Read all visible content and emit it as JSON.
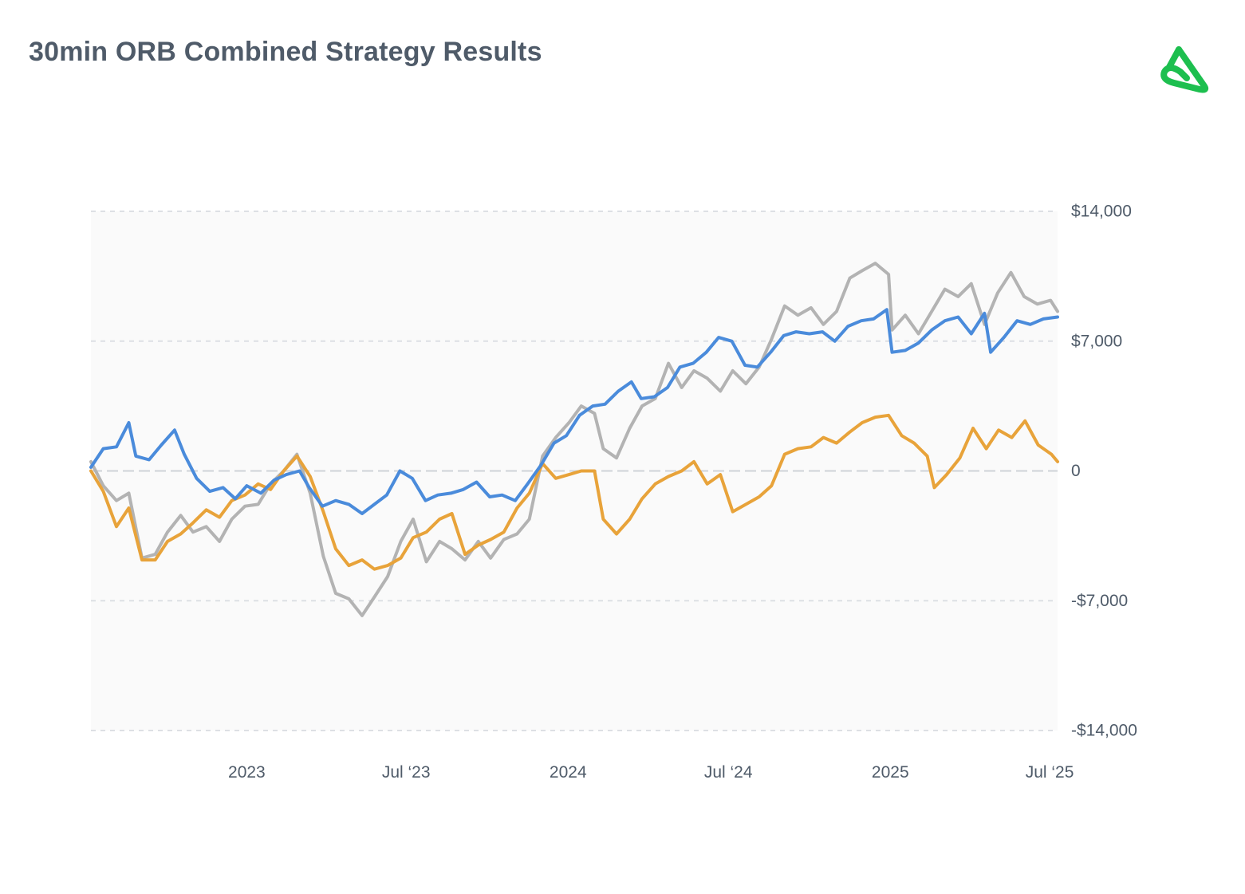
{
  "title": "30min ORB Combined Strategy Results",
  "logo": {
    "icon": "brand-logo-icon",
    "color": "#1dbf4f"
  },
  "chart_data": {
    "type": "line",
    "title": "30min ORB Combined Strategy Results",
    "xlabel": "",
    "ylabel": "",
    "x_tick_labels": [
      "2023",
      "Jul ‘23",
      "2024",
      "Jul ‘24",
      "2025",
      "Jul ‘25"
    ],
    "y_tick_labels": [
      "$14,000",
      "$7,000",
      "0",
      "-$7,000",
      "-$14,000"
    ],
    "y_ticks": [
      14000,
      7000,
      0,
      -7000,
      -14000
    ],
    "ylim": [
      -14000,
      14000
    ],
    "xlim": [
      "2022-07-08",
      "2025-07-10"
    ],
    "x_ticks": [
      "2023-01-01",
      "2023-07-01",
      "2024-01-01",
      "2024-07-01",
      "2025-01-01",
      "2025-07-01"
    ],
    "grid": true,
    "legend": "none",
    "series": [
      {
        "color": "#4a8bdb",
        "points": [
          [
            "2022-07-08",
            200
          ],
          [
            "2022-07-22",
            1200
          ],
          [
            "2022-08-06",
            1300
          ],
          [
            "2022-08-20",
            2600
          ],
          [
            "2022-08-28",
            800
          ],
          [
            "2022-09-12",
            600
          ],
          [
            "2022-09-26",
            1400
          ],
          [
            "2022-10-11",
            2200
          ],
          [
            "2022-10-22",
            900
          ],
          [
            "2022-11-05",
            -400
          ],
          [
            "2022-11-20",
            -1100
          ],
          [
            "2022-12-05",
            -900
          ],
          [
            "2022-12-19",
            -1500
          ],
          [
            "2023-01-01",
            -800
          ],
          [
            "2023-01-17",
            -1200
          ],
          [
            "2023-02-01",
            -500
          ],
          [
            "2023-02-15",
            -200
          ],
          [
            "2023-03-02",
            0
          ],
          [
            "2023-03-13",
            -900
          ],
          [
            "2023-03-28",
            -1900
          ],
          [
            "2023-04-12",
            -1600
          ],
          [
            "2023-04-27",
            -1800
          ],
          [
            "2023-05-12",
            -2300
          ],
          [
            "2023-05-26",
            -1800
          ],
          [
            "2023-06-09",
            -1300
          ],
          [
            "2023-06-24",
            0
          ],
          [
            "2023-07-08",
            -400
          ],
          [
            "2023-07-23",
            -1600
          ],
          [
            "2023-08-06",
            -1300
          ],
          [
            "2023-08-21",
            -1200
          ],
          [
            "2023-09-04",
            -1000
          ],
          [
            "2023-09-19",
            -600
          ],
          [
            "2023-10-04",
            -1400
          ],
          [
            "2023-10-18",
            -1300
          ],
          [
            "2023-11-02",
            -1600
          ],
          [
            "2023-11-16",
            -700
          ],
          [
            "2023-12-01",
            300
          ],
          [
            "2023-12-16",
            1500
          ],
          [
            "2023-12-30",
            1900
          ],
          [
            "2024-01-14",
            3000
          ],
          [
            "2024-01-29",
            3500
          ],
          [
            "2024-02-12",
            3600
          ],
          [
            "2024-02-27",
            4300
          ],
          [
            "2024-03-13",
            4800
          ],
          [
            "2024-03-24",
            3900
          ],
          [
            "2024-04-08",
            4000
          ],
          [
            "2024-04-23",
            4500
          ],
          [
            "2024-05-07",
            5600
          ],
          [
            "2024-05-22",
            5800
          ],
          [
            "2024-06-06",
            6400
          ],
          [
            "2024-06-20",
            7200
          ],
          [
            "2024-07-05",
            7000
          ],
          [
            "2024-07-20",
            5700
          ],
          [
            "2024-08-03",
            5600
          ],
          [
            "2024-08-18",
            6400
          ],
          [
            "2024-09-02",
            7300
          ],
          [
            "2024-09-16",
            7500
          ],
          [
            "2024-10-01",
            7400
          ],
          [
            "2024-10-16",
            7500
          ],
          [
            "2024-10-30",
            7000
          ],
          [
            "2024-11-14",
            7800
          ],
          [
            "2024-11-29",
            8100
          ],
          [
            "2024-12-13",
            8200
          ],
          [
            "2024-12-28",
            8700
          ],
          [
            "2025-01-03",
            6400
          ],
          [
            "2025-01-18",
            6500
          ],
          [
            "2025-02-02",
            6900
          ],
          [
            "2025-02-17",
            7600
          ],
          [
            "2025-03-04",
            8100
          ],
          [
            "2025-03-19",
            8300
          ],
          [
            "2025-04-03",
            7400
          ],
          [
            "2025-04-18",
            8500
          ],
          [
            "2025-04-25",
            6400
          ],
          [
            "2025-05-10",
            7200
          ],
          [
            "2025-05-25",
            8100
          ],
          [
            "2025-06-09",
            7900
          ],
          [
            "2025-06-24",
            8200
          ],
          [
            "2025-07-10",
            8300
          ]
        ]
      },
      {
        "color": "#e8a33a",
        "points": [
          [
            "2022-07-08",
            0
          ],
          [
            "2022-07-22",
            -1100
          ],
          [
            "2022-08-06",
            -3000
          ],
          [
            "2022-08-20",
            -2000
          ],
          [
            "2022-09-04",
            -4800
          ],
          [
            "2022-09-19",
            -4800
          ],
          [
            "2022-10-03",
            -3800
          ],
          [
            "2022-10-18",
            -3400
          ],
          [
            "2022-11-01",
            -2800
          ],
          [
            "2022-11-16",
            -2100
          ],
          [
            "2022-12-01",
            -2500
          ],
          [
            "2022-12-15",
            -1600
          ],
          [
            "2022-12-30",
            -1300
          ],
          [
            "2023-01-14",
            -700
          ],
          [
            "2023-01-28",
            -1000
          ],
          [
            "2023-02-12",
            0
          ],
          [
            "2023-02-27",
            800
          ],
          [
            "2023-03-14",
            -300
          ],
          [
            "2023-03-29",
            -2200
          ],
          [
            "2023-04-12",
            -4200
          ],
          [
            "2023-04-27",
            -5100
          ],
          [
            "2023-05-12",
            -4800
          ],
          [
            "2023-05-26",
            -5300
          ],
          [
            "2023-06-10",
            -5100
          ],
          [
            "2023-06-25",
            -4700
          ],
          [
            "2023-07-09",
            -3600
          ],
          [
            "2023-07-24",
            -3300
          ],
          [
            "2023-08-08",
            -2600
          ],
          [
            "2023-08-22",
            -2300
          ],
          [
            "2023-09-06",
            -4500
          ],
          [
            "2023-09-21",
            -4000
          ],
          [
            "2023-10-05",
            -3700
          ],
          [
            "2023-10-20",
            -3300
          ],
          [
            "2023-11-04",
            -2000
          ],
          [
            "2023-11-18",
            -1200
          ],
          [
            "2023-12-03",
            400
          ],
          [
            "2023-12-18",
            -400
          ],
          [
            "2024-01-02",
            -200
          ],
          [
            "2024-01-16",
            0
          ],
          [
            "2024-01-31",
            0
          ],
          [
            "2024-02-10",
            -2600
          ],
          [
            "2024-02-25",
            -3400
          ],
          [
            "2024-03-11",
            -2600
          ],
          [
            "2024-03-25",
            -1500
          ],
          [
            "2024-04-09",
            -700
          ],
          [
            "2024-04-24",
            -300
          ],
          [
            "2024-05-09",
            0
          ],
          [
            "2024-05-23",
            500
          ],
          [
            "2024-06-07",
            -700
          ],
          [
            "2024-06-22",
            -200
          ],
          [
            "2024-07-06",
            -2200
          ],
          [
            "2024-07-21",
            -1800
          ],
          [
            "2024-08-05",
            -1400
          ],
          [
            "2024-08-19",
            -800
          ],
          [
            "2024-09-03",
            900
          ],
          [
            "2024-09-18",
            1200
          ],
          [
            "2024-10-03",
            1300
          ],
          [
            "2024-10-17",
            1800
          ],
          [
            "2024-11-01",
            1500
          ],
          [
            "2024-11-16",
            2100
          ],
          [
            "2024-11-30",
            2600
          ],
          [
            "2024-12-15",
            2900
          ],
          [
            "2024-12-30",
            3000
          ],
          [
            "2025-01-14",
            1900
          ],
          [
            "2025-01-28",
            1500
          ],
          [
            "2025-02-12",
            800
          ],
          [
            "2025-02-20",
            -900
          ],
          [
            "2025-03-06",
            -200
          ],
          [
            "2025-03-21",
            700
          ],
          [
            "2025-04-05",
            2300
          ],
          [
            "2025-04-20",
            1200
          ],
          [
            "2025-05-04",
            2200
          ],
          [
            "2025-05-19",
            1800
          ],
          [
            "2025-06-03",
            2700
          ],
          [
            "2025-06-18",
            1400
          ],
          [
            "2025-07-03",
            900
          ],
          [
            "2025-07-10",
            500
          ]
        ]
      },
      {
        "color": "#b3b3b3",
        "points": [
          [
            "2022-07-08",
            500
          ],
          [
            "2022-07-22",
            -800
          ],
          [
            "2022-08-06",
            -1600
          ],
          [
            "2022-08-20",
            -1200
          ],
          [
            "2022-09-04",
            -4700
          ],
          [
            "2022-09-19",
            -4500
          ],
          [
            "2022-10-03",
            -3300
          ],
          [
            "2022-10-18",
            -2400
          ],
          [
            "2022-11-01",
            -3300
          ],
          [
            "2022-11-16",
            -3000
          ],
          [
            "2022-12-01",
            -3800
          ],
          [
            "2022-12-15",
            -2600
          ],
          [
            "2022-12-30",
            -1900
          ],
          [
            "2023-01-14",
            -1800
          ],
          [
            "2023-01-28",
            -700
          ],
          [
            "2023-02-12",
            0
          ],
          [
            "2023-02-27",
            900
          ],
          [
            "2023-03-14",
            -1200
          ],
          [
            "2023-03-29",
            -4600
          ],
          [
            "2023-04-12",
            -6600
          ],
          [
            "2023-04-27",
            -6900
          ],
          [
            "2023-05-12",
            -7800
          ],
          [
            "2023-05-26",
            -6800
          ],
          [
            "2023-06-10",
            -5700
          ],
          [
            "2023-06-25",
            -3800
          ],
          [
            "2023-07-09",
            -2600
          ],
          [
            "2023-07-24",
            -4900
          ],
          [
            "2023-08-08",
            -3800
          ],
          [
            "2023-08-22",
            -4200
          ],
          [
            "2023-09-06",
            -4800
          ],
          [
            "2023-09-21",
            -3800
          ],
          [
            "2023-10-05",
            -4700
          ],
          [
            "2023-10-20",
            -3700
          ],
          [
            "2023-11-04",
            -3400
          ],
          [
            "2023-11-18",
            -2600
          ],
          [
            "2023-12-03",
            800
          ],
          [
            "2023-12-18",
            1800
          ],
          [
            "2024-01-02",
            2600
          ],
          [
            "2024-01-16",
            3500
          ],
          [
            "2024-01-31",
            3100
          ],
          [
            "2024-02-10",
            1200
          ],
          [
            "2024-02-25",
            700
          ],
          [
            "2024-03-11",
            2300
          ],
          [
            "2024-03-25",
            3500
          ],
          [
            "2024-04-09",
            3900
          ],
          [
            "2024-04-24",
            5800
          ],
          [
            "2024-05-09",
            4500
          ],
          [
            "2024-05-23",
            5400
          ],
          [
            "2024-06-07",
            5000
          ],
          [
            "2024-06-22",
            4300
          ],
          [
            "2024-07-06",
            5400
          ],
          [
            "2024-07-21",
            4700
          ],
          [
            "2024-08-05",
            5600
          ],
          [
            "2024-08-19",
            7100
          ],
          [
            "2024-09-03",
            8900
          ],
          [
            "2024-09-18",
            8400
          ],
          [
            "2024-10-03",
            8800
          ],
          [
            "2024-10-17",
            7900
          ],
          [
            "2024-11-01",
            8600
          ],
          [
            "2024-11-16",
            10400
          ],
          [
            "2024-11-30",
            10800
          ],
          [
            "2024-12-15",
            11200
          ],
          [
            "2024-12-30",
            10600
          ],
          [
            "2025-01-03",
            7600
          ],
          [
            "2025-01-18",
            8400
          ],
          [
            "2025-02-02",
            7400
          ],
          [
            "2025-02-17",
            8600
          ],
          [
            "2025-03-04",
            9800
          ],
          [
            "2025-03-19",
            9400
          ],
          [
            "2025-04-03",
            10100
          ],
          [
            "2025-04-18",
            7900
          ],
          [
            "2025-05-03",
            9600
          ],
          [
            "2025-05-18",
            10700
          ],
          [
            "2025-06-02",
            9400
          ],
          [
            "2025-06-17",
            9000
          ],
          [
            "2025-07-02",
            9200
          ],
          [
            "2025-07-10",
            8600
          ]
        ]
      }
    ]
  }
}
